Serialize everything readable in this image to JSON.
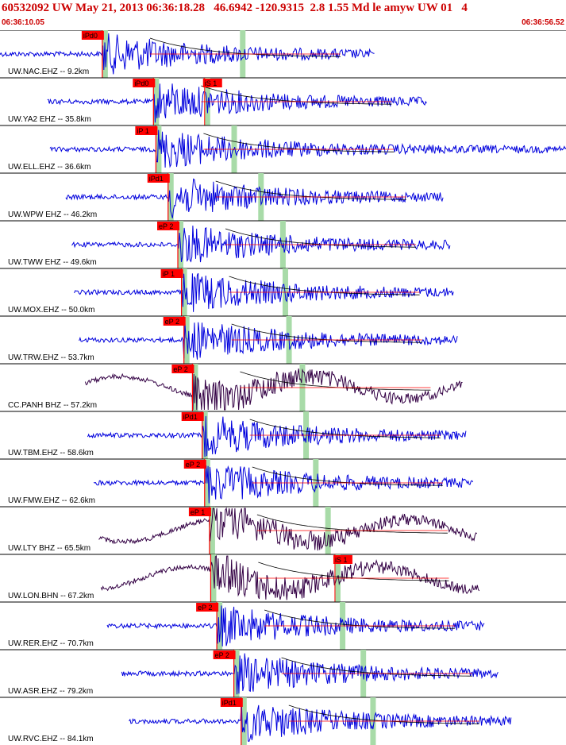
{
  "header": {
    "title": "60532092 UW May 21, 2013 06:36:18.28   46.6942 -120.9315  2.8 1.55 Md le amyw UW 01   4",
    "time_start": "06:36:10.05",
    "time_end": "06:36:56.52"
  },
  "colors": {
    "header_text": "#cc0000",
    "trace_ehz": "#0000dd",
    "trace_broadband": "#330044",
    "pick": "#ff0000",
    "pick_label_bg": "#ff0000",
    "window_bar": "#a8dba8",
    "coda_curve": "#000000"
  },
  "chart_data": {
    "type": "line",
    "title": "60532092 UW May 21, 2013 06:36:18.28   46.6942 -120.9315  2.8 1.55 Md le amyw UW 01   4",
    "x_range_labels": [
      "06:36:10.05",
      "06:36:56.52"
    ],
    "grid": false,
    "traces": [
      {
        "label": "UW.NAC.EHZ -- 9.2km",
        "channel": "EHZ",
        "distance_km": 9.2,
        "p_pick": "iPd0",
        "s_pick": "",
        "p_time_s": 8.4,
        "s_time_s": 19.7,
        "start_s": 0.0,
        "end_s": 30.8
      },
      {
        "label": "UW.YA2 EHZ -- 35.8km",
        "channel": "EHZ",
        "distance_km": 35.8,
        "p_pick": "iPd0",
        "s_pick": "iS 1",
        "p_time_s": 12.6,
        "s_time_s": 16.8,
        "start_s": 3.9,
        "end_s": 35.1
      },
      {
        "label": "UW.ELL.EHZ -- 36.6km",
        "channel": "EHZ",
        "distance_km": 36.6,
        "p_pick": "iP 1",
        "s_pick": "",
        "p_time_s": 12.8,
        "s_time_s": 19.0,
        "start_s": 4.1,
        "end_s": 46.5
      },
      {
        "label": "UW.WPW EHZ -- 46.2km",
        "channel": "EHZ",
        "distance_km": 46.2,
        "p_pick": "iPd1",
        "s_pick": "",
        "p_time_s": 13.8,
        "s_time_s": 21.2,
        "start_s": 5.4,
        "end_s": 36.4
      },
      {
        "label": "UW.TWW EHZ -- 49.6km",
        "channel": "EHZ",
        "distance_km": 49.6,
        "p_pick": "eP 2",
        "s_pick": "",
        "p_time_s": 14.6,
        "s_time_s": 23.0,
        "start_s": 5.9,
        "end_s": 37.0
      },
      {
        "label": "UW.MOX.EHZ -- 50.0km",
        "channel": "EHZ",
        "distance_km": 50.0,
        "p_pick": "iP 1",
        "s_pick": "",
        "p_time_s": 14.9,
        "s_time_s": 23.2,
        "start_s": 6.1,
        "end_s": 37.3
      },
      {
        "label": "UW.TRW.EHZ -- 53.7km",
        "channel": "EHZ",
        "distance_km": 53.7,
        "p_pick": "eP 2",
        "s_pick": "",
        "p_time_s": 15.1,
        "s_time_s": 23.5,
        "start_s": 6.5,
        "end_s": 37.6
      },
      {
        "label": "CC.PANH BHZ -- 57.2km",
        "channel": "BHZ",
        "distance_km": 57.2,
        "p_pick": "eP 2",
        "s_pick": "",
        "p_time_s": 15.8,
        "s_time_s": 24.6,
        "start_s": 7.0,
        "end_s": 38.0
      },
      {
        "label": "UW.TBM.EHZ -- 58.6km",
        "channel": "EHZ",
        "distance_km": 58.6,
        "p_pick": "iPd1",
        "s_pick": "",
        "p_time_s": 16.6,
        "s_time_s": 24.9,
        "start_s": 7.2,
        "end_s": 38.3
      },
      {
        "label": "UW.FMW.EHZ -- 62.6km",
        "channel": "EHZ",
        "distance_km": 62.6,
        "p_pick": "eP 2",
        "s_pick": "",
        "p_time_s": 16.8,
        "s_time_s": 25.7,
        "start_s": 7.7,
        "end_s": 38.9
      },
      {
        "label": "UW.LTY BHZ -- 65.5km",
        "channel": "BHZ",
        "distance_km": 65.5,
        "p_pick": "eP 1",
        "s_pick": "",
        "p_time_s": 17.2,
        "s_time_s": 26.7,
        "start_s": 8.1,
        "end_s": 39.2
      },
      {
        "label": "UW.LON.BHN -- 67.2km",
        "channel": "BHN",
        "distance_km": 67.2,
        "p_pick": "",
        "s_pick": "iS 1",
        "p_time_s": 17.3,
        "s_time_s": 27.5,
        "start_s": 8.3,
        "end_s": 39.4
      },
      {
        "label": "UW.RER.EHZ -- 70.7km",
        "channel": "EHZ",
        "distance_km": 70.7,
        "p_pick": "eP 2",
        "s_pick": "",
        "p_time_s": 17.8,
        "s_time_s": 27.9,
        "start_s": 8.8,
        "end_s": 39.8
      },
      {
        "label": "UW.ASR.EHZ -- 79.2km",
        "channel": "EHZ",
        "distance_km": 79.2,
        "p_pick": "eP 2",
        "s_pick": "",
        "p_time_s": 19.2,
        "s_time_s": 29.6,
        "start_s": 10.0,
        "end_s": 40.9
      },
      {
        "label": "UW.RVC.EHZ -- 84.1km",
        "channel": "EHZ",
        "distance_km": 84.1,
        "p_pick": "iPd1",
        "s_pick": "",
        "p_time_s": 19.8,
        "s_time_s": 30.4,
        "start_s": 10.6,
        "end_s": 42.0
      }
    ]
  }
}
